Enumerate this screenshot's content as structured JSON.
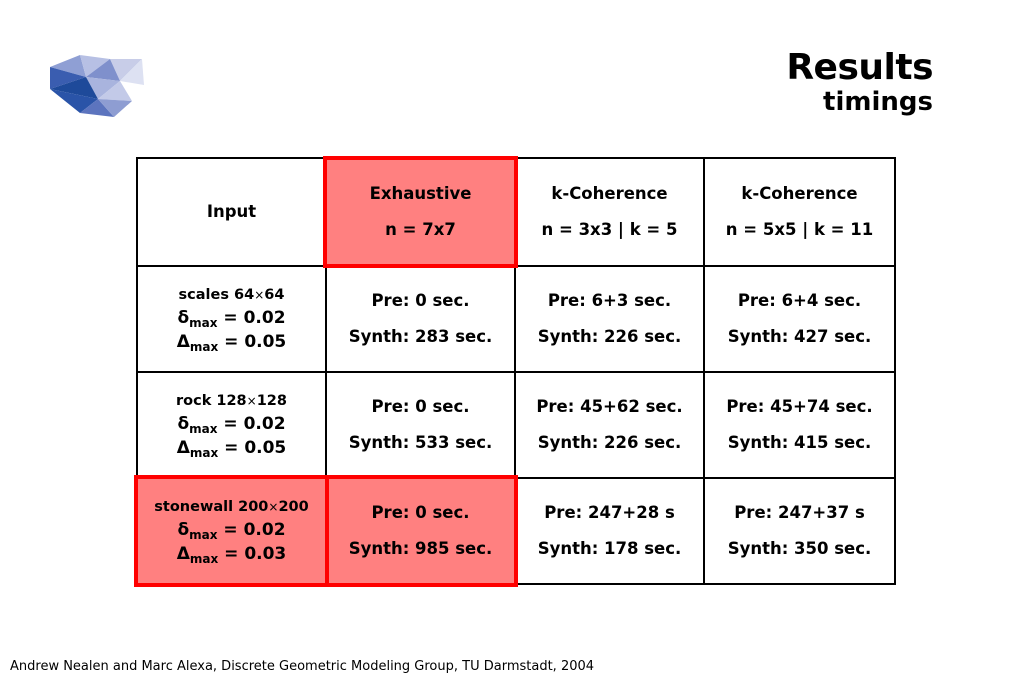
{
  "header": {
    "title": "Results",
    "subtitle": "timings"
  },
  "table": {
    "head": {
      "input": "Input",
      "col1_title": "Exhaustive",
      "col1_param": "n = 7x7",
      "col2_title": "k-Coherence",
      "col2_param": "n = 3x3 | k = 5",
      "col3_title": "k-Coherence",
      "col3_param": "n = 5x5 | k = 11"
    },
    "rows": [
      {
        "name": "scales 64",
        "size_sep": "×",
        "size": "64",
        "delta_small": "δ",
        "delta_big": "Δ",
        "sub": "max",
        "d_small_val": " = 0.02",
        "d_big_val": " = 0.05",
        "c1_pre": "Pre: 0 sec.",
        "c1_synth": "Synth: 283 sec.",
        "c2_pre": "Pre: 6+3 sec.",
        "c2_synth": "Synth: 226 sec.",
        "c3_pre": "Pre: 6+4 sec.",
        "c3_synth": "Synth: 427 sec."
      },
      {
        "name": "rock 128",
        "size_sep": "×",
        "size": "128",
        "delta_small": "δ",
        "delta_big": "Δ",
        "sub": "max",
        "d_small_val": " = 0.02",
        "d_big_val": " = 0.05",
        "c1_pre": "Pre: 0 sec.",
        "c1_synth": "Synth: 533 sec.",
        "c2_pre": "Pre: 45+62 sec.",
        "c2_synth": "Synth: 226 sec.",
        "c3_pre": "Pre: 45+74 sec.",
        "c3_synth": "Synth: 415 sec."
      },
      {
        "name": "stonewall 200",
        "size_sep": "×",
        "size": "200",
        "delta_small": "δ",
        "delta_big": "Δ",
        "sub": "max",
        "d_small_val": " = 0.02",
        "d_big_val": " = 0.03",
        "c1_pre": "Pre: 0 sec.",
        "c1_synth": "Synth: 985 sec.",
        "c2_pre": "Pre: 247+28 s",
        "c2_synth": "Synth: 178 sec.",
        "c3_pre": "Pre: 247+37 s",
        "c3_synth": "Synth: 350 sec."
      }
    ]
  },
  "footer": "Andrew Nealen and Marc Alexa, Discrete Geometric Modeling Group, TU Darmstadt, 2004",
  "colors": {
    "highlight_fill": "#ff8080",
    "highlight_border": "#ff0000",
    "logo_dark": "#1e4a9a",
    "logo_mid": "#6b7fc4",
    "logo_light": "#c8cde8"
  }
}
